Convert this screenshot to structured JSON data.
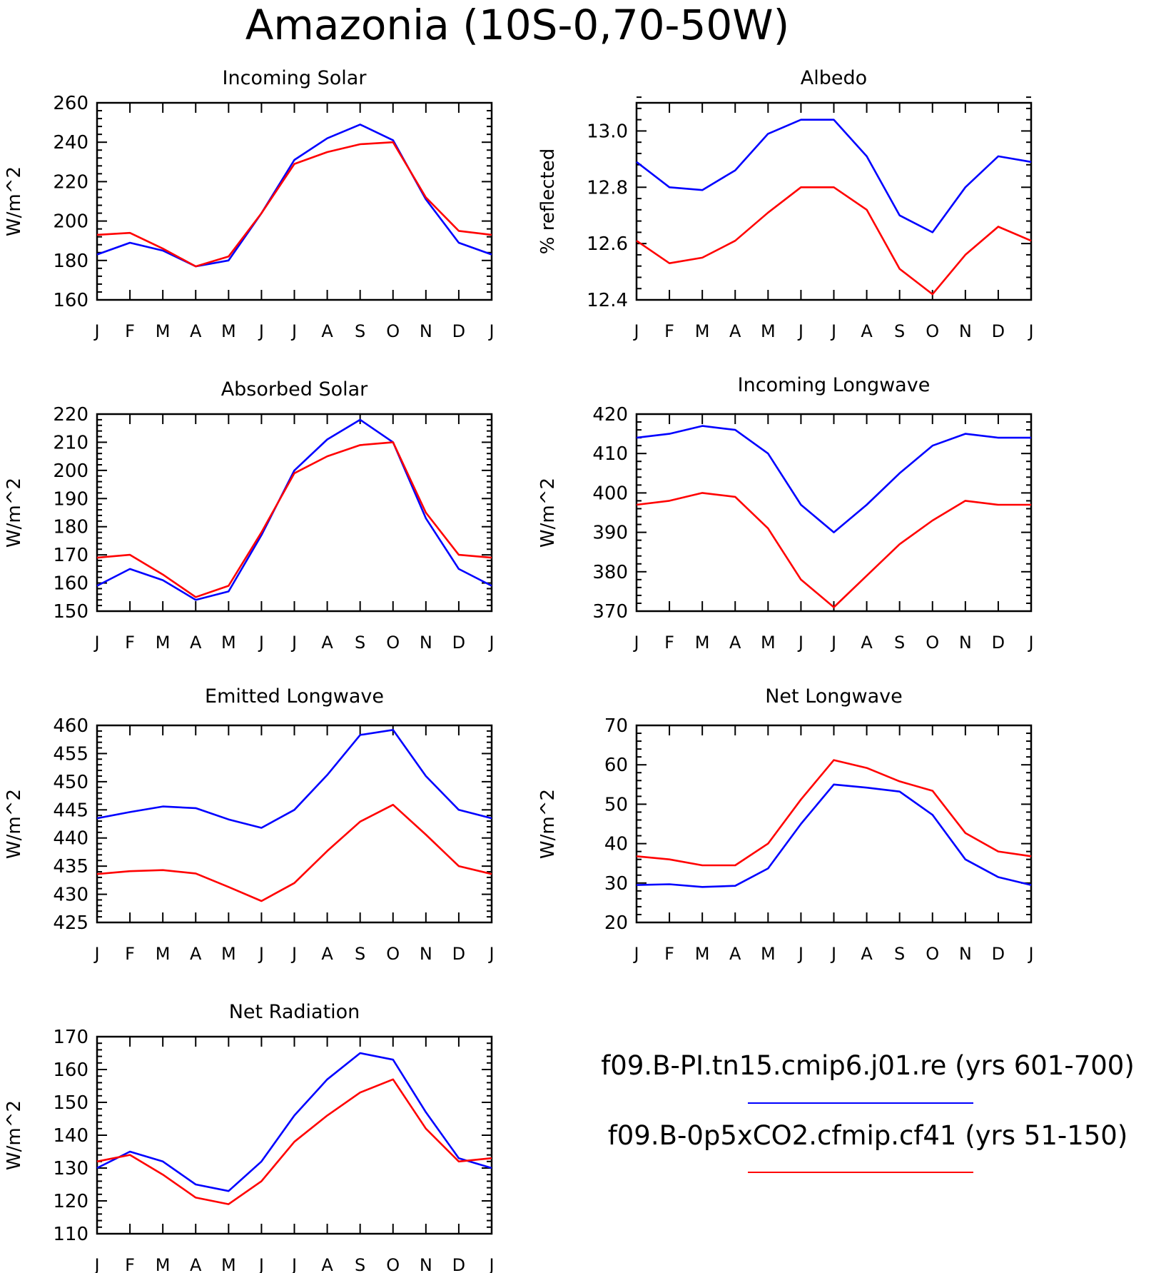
{
  "figure": {
    "title": "Amazonia (10S-0,70-50W)",
    "months": [
      "J",
      "F",
      "M",
      "A",
      "M",
      "J",
      "J",
      "A",
      "S",
      "O",
      "N",
      "D",
      "J"
    ]
  },
  "legend": [
    {
      "label": "f09.B-PI.tn15.cmip6.j01.re (yrs 601-700)",
      "color": "#0000ff"
    },
    {
      "label": "f09.B-0p5xCO2.cfmip.cf41 (yrs 51-150)",
      "color": "#ff0000"
    }
  ],
  "chart_data": [
    {
      "type": "line",
      "title": "Incoming Solar",
      "ylabel": "W/m^2",
      "ylim": [
        160,
        260
      ],
      "yticks": [
        "160",
        "180",
        "200",
        "220",
        "240",
        "260"
      ],
      "series": [
        {
          "color": "#0000ff",
          "values": [
            183,
            189,
            185,
            177,
            180,
            204,
            231,
            242,
            249,
            241,
            211,
            189,
            183
          ]
        },
        {
          "color": "#ff0000",
          "values": [
            193,
            194,
            186,
            177,
            182,
            204,
            229,
            235,
            239,
            240,
            212,
            195,
            193
          ]
        }
      ]
    },
    {
      "type": "line",
      "title": "Albedo",
      "ylabel": "% reflected",
      "ylim": [
        12.4,
        13.1
      ],
      "yticks": [
        "12.4",
        "12.6",
        "12.8",
        "13.0"
      ],
      "series": [
        {
          "color": "#0000ff",
          "values": [
            12.89,
            12.8,
            12.79,
            12.86,
            12.99,
            13.04,
            13.04,
            12.91,
            12.7,
            12.64,
            12.8,
            12.91,
            12.89
          ]
        },
        {
          "color": "#ff0000",
          "values": [
            12.61,
            12.53,
            12.55,
            12.61,
            12.71,
            12.8,
            12.8,
            12.72,
            12.51,
            12.42,
            12.56,
            12.66,
            12.61
          ]
        }
      ]
    },
    {
      "type": "line",
      "title": "Absorbed Solar",
      "ylabel": "W/m^2",
      "ylim": [
        150,
        220
      ],
      "yticks": [
        "150",
        "160",
        "170",
        "180",
        "190",
        "200",
        "210",
        "220"
      ],
      "series": [
        {
          "color": "#0000ff",
          "values": [
            159,
            165,
            161,
            154,
            157,
            177,
            200,
            211,
            218,
            210,
            183,
            165,
            159
          ]
        },
        {
          "color": "#ff0000",
          "values": [
            169,
            170,
            163,
            155,
            159,
            178,
            199,
            205,
            209,
            210,
            185,
            170,
            169
          ]
        }
      ]
    },
    {
      "type": "line",
      "title": "Incoming Longwave",
      "ylabel": "W/m^2",
      "ylim": [
        370,
        420
      ],
      "yticks": [
        "370",
        "380",
        "390",
        "400",
        "410",
        "420"
      ],
      "series": [
        {
          "color": "#0000ff",
          "values": [
            414,
            415,
            417,
            416,
            410,
            397,
            390,
            397,
            405,
            412,
            415,
            414,
            414
          ]
        },
        {
          "color": "#ff0000",
          "values": [
            397,
            398,
            400,
            399,
            391,
            378,
            371,
            379,
            387,
            393,
            398,
            397,
            397
          ]
        }
      ]
    },
    {
      "type": "line",
      "title": "Emitted Longwave",
      "ylabel": "W/m^2",
      "ylim": [
        425,
        460
      ],
      "yticks": [
        "425",
        "430",
        "435",
        "440",
        "445",
        "450",
        "455",
        "460"
      ],
      "series": [
        {
          "color": "#0000ff",
          "values": [
            443.5,
            444.6,
            445.6,
            445.3,
            443.3,
            441.8,
            445.0,
            451.2,
            458.3,
            459.2,
            451.0,
            445.0,
            443.5
          ]
        },
        {
          "color": "#ff0000",
          "values": [
            433.6,
            434.1,
            434.3,
            433.7,
            431.3,
            428.8,
            432.0,
            437.7,
            442.9,
            445.9,
            440.6,
            435.0,
            433.6
          ]
        }
      ]
    },
    {
      "type": "line",
      "title": "Net Longwave",
      "ylabel": "W/m^2",
      "ylim": [
        20,
        70
      ],
      "yticks": [
        "20",
        "30",
        "40",
        "50",
        "60",
        "70"
      ],
      "series": [
        {
          "color": "#0000ff",
          "values": [
            29.5,
            29.7,
            29.0,
            29.3,
            33.7,
            45.0,
            55.0,
            54.2,
            53.2,
            47.3,
            36.0,
            31.5,
            29.5
          ]
        },
        {
          "color": "#ff0000",
          "values": [
            36.8,
            36.0,
            34.5,
            34.5,
            40.0,
            51.2,
            61.2,
            59.2,
            55.8,
            53.4,
            42.7,
            38.0,
            36.8
          ]
        }
      ]
    },
    {
      "type": "line",
      "title": "Net Radiation",
      "ylabel": "W/m^2",
      "ylim": [
        110,
        170
      ],
      "yticks": [
        "110",
        "120",
        "130",
        "140",
        "150",
        "160",
        "170"
      ],
      "series": [
        {
          "color": "#0000ff",
          "values": [
            130,
            135,
            132,
            125,
            123,
            132,
            146,
            157,
            165,
            163,
            147,
            133,
            130
          ]
        },
        {
          "color": "#ff0000",
          "values": [
            132,
            134,
            128,
            121,
            119,
            126,
            138,
            146,
            153,
            157,
            142,
            132,
            133
          ]
        }
      ]
    }
  ]
}
